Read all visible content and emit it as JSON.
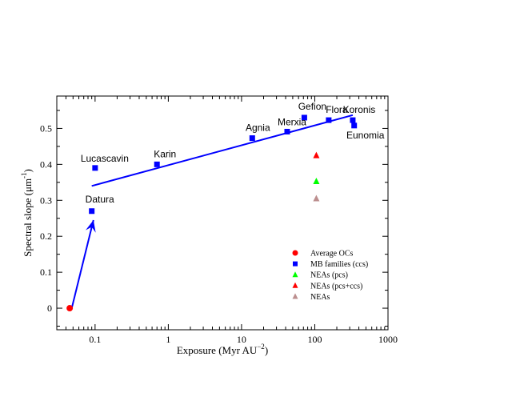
{
  "chart_data": {
    "type": "scatter",
    "xlabel": "Exposure (Myr AU",
    "xlabel_sup": "−2",
    "xlabel_end": ")",
    "ylabel": "Spectral slope (μm",
    "ylabel_sup": "-1",
    "ylabel_end": ")",
    "xscale": "log",
    "xlim": [
      0.03,
      1000
    ],
    "ylim": [
      -0.06,
      0.59
    ],
    "xticks": [
      {
        "value": 0.1,
        "label": "0.1"
      },
      {
        "value": 1,
        "label": "1"
      },
      {
        "value": 10,
        "label": "10"
      },
      {
        "value": 100,
        "label": "100"
      },
      {
        "value": 1000,
        "label": "1000"
      }
    ],
    "yticks": [
      {
        "value": 0,
        "label": "0"
      },
      {
        "value": 0.1,
        "label": "0.1"
      },
      {
        "value": 0.2,
        "label": "0.2"
      },
      {
        "value": 0.3,
        "label": "0.3"
      },
      {
        "value": 0.4,
        "label": "0.4"
      },
      {
        "value": 0.5,
        "label": "0.5"
      }
    ],
    "grid": false,
    "legend_position": "bottom-right",
    "series": [
      {
        "name": "Average OCs",
        "marker": "circle",
        "color": "#ff0000",
        "points": [
          {
            "x": 0.045,
            "y": 0.0
          }
        ]
      },
      {
        "name": "MB families (ccs)",
        "marker": "square",
        "color": "#0000ff",
        "points": [
          {
            "x": 0.1,
            "y": 0.39,
            "label": "Lucascavin"
          },
          {
            "x": 0.09,
            "y": 0.27,
            "label": "Datura"
          },
          {
            "x": 0.7,
            "y": 0.4,
            "label": "Karin"
          },
          {
            "x": 14,
            "y": 0.473,
            "label": "Agnia"
          },
          {
            "x": 42,
            "y": 0.491,
            "label": "Merxia"
          },
          {
            "x": 72,
            "y": 0.53,
            "label": "Gefion"
          },
          {
            "x": 155,
            "y": 0.523,
            "label": "Flora"
          },
          {
            "x": 330,
            "y": 0.523,
            "label": "Koronis"
          },
          {
            "x": 345,
            "y": 0.508,
            "label": "Eunomia"
          }
        ]
      },
      {
        "name": "NEAs (pcs)",
        "marker": "triangle",
        "color": "#00ff00",
        "points": [
          {
            "x": 105,
            "y": 0.353
          }
        ]
      },
      {
        "name": "NEAs (pcs+ccs)",
        "marker": "triangle",
        "color": "#ff0000",
        "points": [
          {
            "x": 105,
            "y": 0.425
          }
        ]
      },
      {
        "name": "NEAs",
        "marker": "triangle",
        "color": "#bc8f8f",
        "points": [
          {
            "x": 105,
            "y": 0.305
          }
        ]
      }
    ],
    "fit_line": {
      "color": "#0000ff",
      "from": {
        "x": 0.09,
        "y": 0.34
      },
      "to": {
        "x": 330,
        "y": 0.537
      }
    },
    "arrow": {
      "color": "#0000ff",
      "from": {
        "x": 0.048,
        "y": 0.0
      },
      "to": {
        "x": 0.095,
        "y": 0.245
      }
    }
  }
}
